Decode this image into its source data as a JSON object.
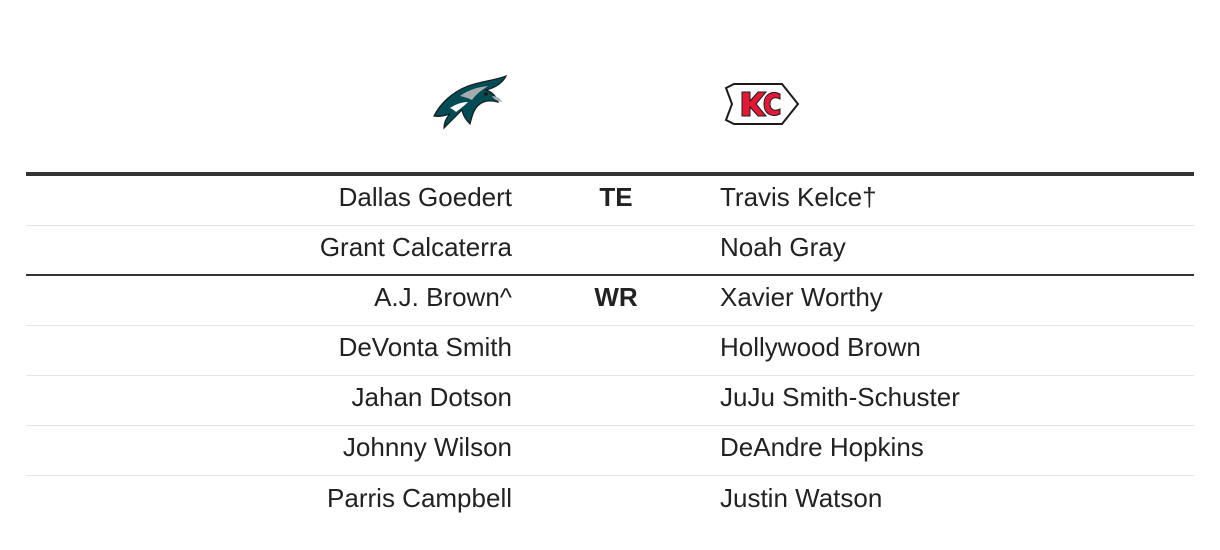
{
  "teams": {
    "left": {
      "logo_icon": "eagles-logo-icon"
    },
    "right": {
      "logo_icon": "chiefs-logo-icon"
    }
  },
  "rows": [
    {
      "position": "TE",
      "left": "Dallas Goedert",
      "right": "Travis Kelce†"
    },
    {
      "position": "",
      "left": "Grant Calcaterra",
      "right": "Noah Gray"
    },
    {
      "position": "WR",
      "left": "A.J. Brown^",
      "right": "Xavier Worthy"
    },
    {
      "position": "",
      "left": "DeVonta Smith",
      "right": "Hollywood Brown"
    },
    {
      "position": "",
      "left": "Jahan Dotson",
      "right": "JuJu Smith-Schuster"
    },
    {
      "position": "",
      "left": "Johnny Wilson",
      "right": "DeAndre Hopkins"
    },
    {
      "position": "",
      "left": "Parris Campbell",
      "right": "Justin Watson"
    }
  ],
  "colors": {
    "eagles_green": "#004C54",
    "eagles_silver": "#A5ACAF",
    "chiefs_red": "#E31837",
    "chiefs_gold": "#FFB81C",
    "rule": "#333333"
  }
}
